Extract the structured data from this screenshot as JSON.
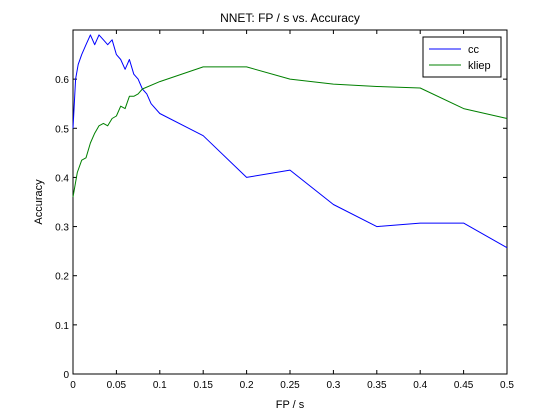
{
  "chart_data": {
    "type": "line",
    "title": "NNET: FP / s vs. Accuracy",
    "xlabel": "FP / s",
    "ylabel": "Accuracy",
    "xlim": [
      0,
      0.5
    ],
    "ylim": [
      0,
      0.7
    ],
    "xticks": [
      0,
      0.05,
      0.1,
      0.15,
      0.2,
      0.25,
      0.3,
      0.35,
      0.4,
      0.45,
      0.5
    ],
    "xtick_labels": [
      "0",
      "0.05",
      "0.1",
      "0.15",
      "0.2",
      "0.25",
      "0.3",
      "0.35",
      "0.4",
      "0.45",
      "0.5"
    ],
    "yticks": [
      0,
      0.1,
      0.2,
      0.3,
      0.4,
      0.5,
      0.6
    ],
    "ytick_labels": [
      "0",
      "0.1",
      "0.2",
      "0.3",
      "0.4",
      "0.5",
      "0.6"
    ],
    "grid": false,
    "legend_position": "top-right",
    "series": [
      {
        "name": "cc",
        "color": "#0000ff",
        "x": [
          0,
          0.003,
          0.006,
          0.01,
          0.015,
          0.02,
          0.025,
          0.03,
          0.035,
          0.04,
          0.045,
          0.05,
          0.055,
          0.06,
          0.065,
          0.07,
          0.075,
          0.08,
          0.085,
          0.09,
          0.1,
          0.15,
          0.2,
          0.25,
          0.3,
          0.35,
          0.4,
          0.45,
          0.5
        ],
        "y": [
          0.5,
          0.6,
          0.63,
          0.65,
          0.67,
          0.69,
          0.67,
          0.69,
          0.68,
          0.67,
          0.68,
          0.65,
          0.64,
          0.62,
          0.64,
          0.61,
          0.6,
          0.58,
          0.57,
          0.55,
          0.53,
          0.485,
          0.4,
          0.415,
          0.345,
          0.3,
          0.307,
          0.307,
          0.257
        ]
      },
      {
        "name": "kliep",
        "color": "#008000",
        "x": [
          0,
          0.005,
          0.01,
          0.015,
          0.02,
          0.025,
          0.03,
          0.035,
          0.04,
          0.045,
          0.05,
          0.055,
          0.06,
          0.065,
          0.07,
          0.075,
          0.08,
          0.1,
          0.15,
          0.2,
          0.25,
          0.3,
          0.35,
          0.4,
          0.45,
          0.5
        ],
        "y": [
          0.36,
          0.41,
          0.435,
          0.44,
          0.47,
          0.49,
          0.505,
          0.51,
          0.505,
          0.52,
          0.525,
          0.545,
          0.54,
          0.565,
          0.565,
          0.57,
          0.58,
          0.595,
          0.625,
          0.625,
          0.6,
          0.59,
          0.585,
          0.582,
          0.54,
          0.52
        ]
      }
    ]
  }
}
